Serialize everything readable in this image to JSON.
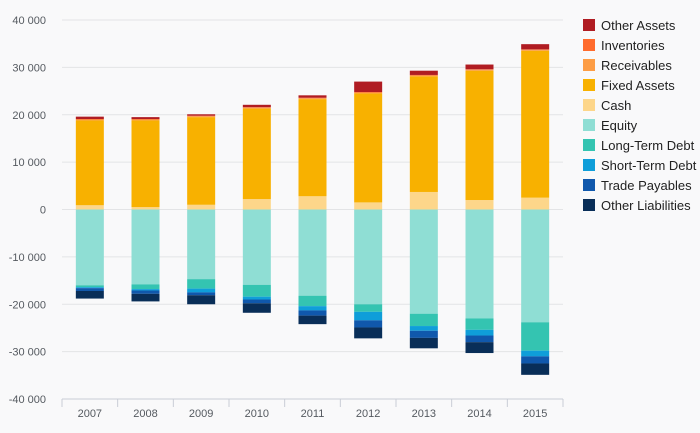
{
  "chart_data": {
    "type": "bar",
    "stacked": true,
    "categories": [
      "2007",
      "2008",
      "2009",
      "2010",
      "2011",
      "2012",
      "2013",
      "2014",
      "2015"
    ],
    "ylim": [
      -40000,
      40000
    ],
    "yticks": [
      40000,
      30000,
      20000,
      10000,
      0,
      -10000,
      -20000,
      -30000,
      -40000
    ],
    "ytick_labels": [
      "40 000",
      "30 000",
      "20 000",
      "10 000",
      "0",
      "-10 000",
      "-20 000",
      "-30 000",
      "-40 000"
    ],
    "grid": true,
    "legend_position": "right",
    "assets": [
      {
        "name": "Cash",
        "color": "#fdd68a",
        "values": [
          900,
          500,
          1000,
          2200,
          2800,
          1500,
          3700,
          2000,
          2500
        ]
      },
      {
        "name": "Fixed Assets",
        "color": "#f8b100",
        "values": [
          17900,
          18300,
          18500,
          19100,
          20500,
          23000,
          24400,
          27300,
          31000
        ]
      },
      {
        "name": "Receivables",
        "color": "#fd9d45",
        "values": [
          200,
          200,
          200,
          200,
          200,
          200,
          200,
          200,
          200
        ]
      },
      {
        "name": "Inventories",
        "color": "#ff6b2d",
        "values": [
          100,
          100,
          100,
          100,
          100,
          100,
          100,
          100,
          100
        ]
      },
      {
        "name": "Other Assets",
        "color": "#b01c22",
        "values": [
          500,
          400,
          300,
          500,
          500,
          2200,
          900,
          1000,
          1100
        ]
      }
    ],
    "liabilities": [
      {
        "name": "Equity",
        "color": "#8fded4",
        "values": [
          -16000,
          -15800,
          -14700,
          -15900,
          -18200,
          -20000,
          -22000,
          -23000,
          -23800
        ]
      },
      {
        "name": "Long-Term Debt",
        "color": "#34c4b1",
        "values": [
          -400,
          -1000,
          -2000,
          -2500,
          -2200,
          -1600,
          -2600,
          -2400,
          -6000
        ]
      },
      {
        "name": "Short-Term Debt",
        "color": "#0f9ed9",
        "values": [
          -200,
          -300,
          -800,
          -600,
          -900,
          -1800,
          -1000,
          -1200,
          -1200
        ]
      },
      {
        "name": "Trade Payables",
        "color": "#1058ac",
        "values": [
          -600,
          -700,
          -600,
          -800,
          -1100,
          -1500,
          -1500,
          -1400,
          -1500
        ]
      },
      {
        "name": "Other Liabilities",
        "color": "#092e58",
        "values": [
          -1600,
          -1600,
          -1900,
          -2000,
          -1800,
          -2300,
          -2200,
          -2300,
          -2400
        ]
      }
    ],
    "legend": [
      {
        "name": "Other Assets",
        "color": "#b01c22"
      },
      {
        "name": "Inventories",
        "color": "#ff6b2d"
      },
      {
        "name": "Receivables",
        "color": "#fd9d45"
      },
      {
        "name": "Fixed Assets",
        "color": "#f8b100"
      },
      {
        "name": "Cash",
        "color": "#fdd68a"
      },
      {
        "name": "Equity",
        "color": "#8fded4"
      },
      {
        "name": "Long-Term Debt",
        "color": "#34c4b1"
      },
      {
        "name": "Short-Term Debt",
        "color": "#0f9ed9"
      },
      {
        "name": "Trade Payables",
        "color": "#1058ac"
      },
      {
        "name": "Other Liabilities",
        "color": "#092e58"
      }
    ]
  }
}
